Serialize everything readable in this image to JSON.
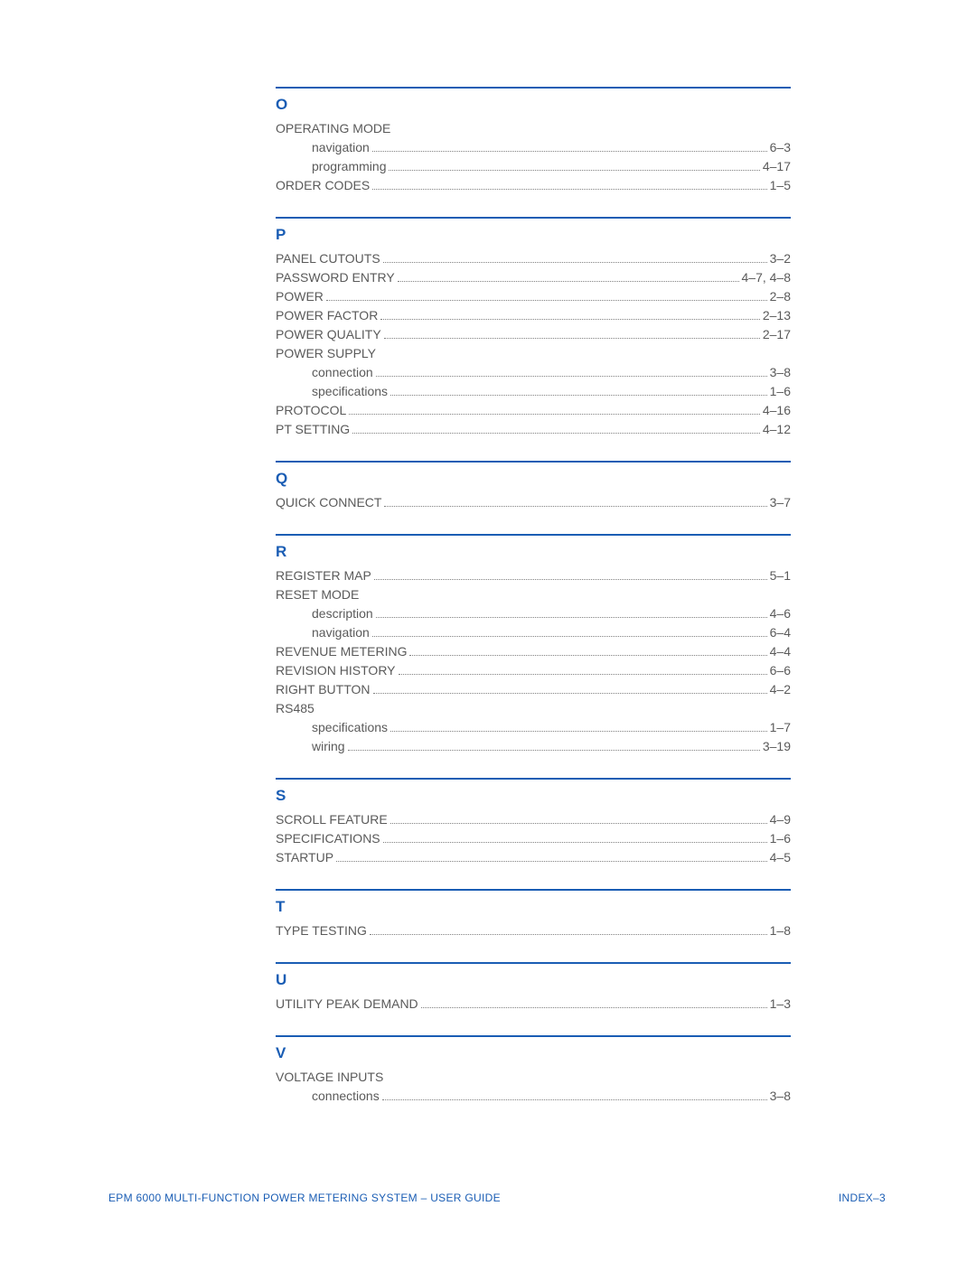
{
  "colors": {
    "accent": "#1a5db4",
    "text": "#5a5a5a",
    "dot": "#808080",
    "background": "#ffffff"
  },
  "typography": {
    "letter_fontsize": 17,
    "entry_fontsize": 14,
    "footer_fontsize": 12,
    "font_family": "Segoe UI"
  },
  "sections": [
    {
      "letter": "O",
      "entries": [
        {
          "label": "OPERATING MODE",
          "page": "",
          "sub": false,
          "noline": true
        },
        {
          "label": "navigation",
          "page": "6–3",
          "sub": true
        },
        {
          "label": "programming",
          "page": "4–17",
          "sub": true
        },
        {
          "label": "ORDER CODES",
          "page": "1–5",
          "sub": false
        }
      ]
    },
    {
      "letter": "P",
      "entries": [
        {
          "label": "PANEL CUTOUTS",
          "page": "3–2",
          "sub": false
        },
        {
          "label": "PASSWORD ENTRY",
          "page": "4–7, 4–8",
          "sub": false
        },
        {
          "label": "POWER",
          "page": "2–8",
          "sub": false
        },
        {
          "label": "POWER FACTOR",
          "page": "2–13",
          "sub": false
        },
        {
          "label": "POWER QUALITY",
          "page": "2–17",
          "sub": false
        },
        {
          "label": "POWER SUPPLY",
          "page": "",
          "sub": false,
          "noline": true
        },
        {
          "label": "connection",
          "page": "3–8",
          "sub": true
        },
        {
          "label": "specifications",
          "page": "1–6",
          "sub": true
        },
        {
          "label": "PROTOCOL",
          "page": "4–16",
          "sub": false
        },
        {
          "label": "PT SETTING",
          "page": "4–12",
          "sub": false
        }
      ]
    },
    {
      "letter": "Q",
      "entries": [
        {
          "label": "QUICK CONNECT",
          "page": "3–7",
          "sub": false
        }
      ]
    },
    {
      "letter": "R",
      "entries": [
        {
          "label": "REGISTER MAP",
          "page": "5–1",
          "sub": false
        },
        {
          "label": "RESET MODE",
          "page": "",
          "sub": false,
          "noline": true
        },
        {
          "label": "description",
          "page": "4–6",
          "sub": true
        },
        {
          "label": "navigation",
          "page": "6–4",
          "sub": true
        },
        {
          "label": "REVENUE METERING",
          "page": "4–4",
          "sub": false
        },
        {
          "label": "REVISION HISTORY",
          "page": "6–6",
          "sub": false
        },
        {
          "label": "RIGHT BUTTON",
          "page": "4–2",
          "sub": false
        },
        {
          "label": "RS485",
          "page": "",
          "sub": false,
          "noline": true
        },
        {
          "label": "specifications",
          "page": "1–7",
          "sub": true
        },
        {
          "label": "wiring",
          "page": "3–19",
          "sub": true
        }
      ]
    },
    {
      "letter": "S",
      "entries": [
        {
          "label": "SCROLL FEATURE",
          "page": "4–9",
          "sub": false
        },
        {
          "label": "SPECIFICATIONS",
          "page": "1–6",
          "sub": false
        },
        {
          "label": "STARTUP",
          "page": "4–5",
          "sub": false
        }
      ]
    },
    {
      "letter": "T",
      "entries": [
        {
          "label": "TYPE TESTING",
          "page": "1–8",
          "sub": false
        }
      ]
    },
    {
      "letter": "U",
      "entries": [
        {
          "label": "UTILITY PEAK DEMAND",
          "page": "1–3",
          "sub": false
        }
      ]
    },
    {
      "letter": "V",
      "entries": [
        {
          "label": "VOLTAGE INPUTS",
          "page": "",
          "sub": false,
          "noline": true
        },
        {
          "label": "connections",
          "page": "3–8",
          "sub": true
        }
      ]
    }
  ],
  "footer": {
    "left": "EPM 6000 MULTI-FUNCTION POWER METERING SYSTEM – USER GUIDE",
    "right": "INDEX–3"
  }
}
